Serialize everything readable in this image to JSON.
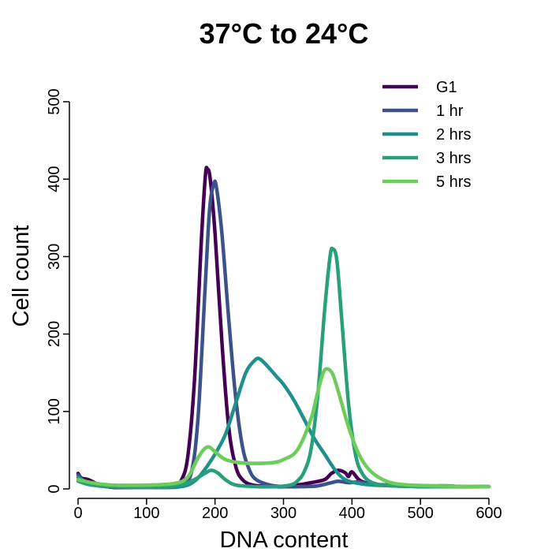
{
  "chart_data": {
    "type": "line",
    "title": "37°C to 24°C",
    "xlabel": "DNA content",
    "ylabel": "Cell count",
    "xlim": [
      0,
      600
    ],
    "ylim": [
      0,
      500
    ],
    "x_ticks": [
      "0",
      "100",
      "200",
      "300",
      "400",
      "500",
      "600"
    ],
    "y_ticks": [
      "0",
      "100",
      "200",
      "300",
      "400",
      "500"
    ],
    "legend_position": "top-right",
    "grid": false,
    "series": [
      {
        "name": "G1",
        "color": "#440154",
        "points": [
          [
            0,
            20
          ],
          [
            5,
            14
          ],
          [
            15,
            12
          ],
          [
            30,
            6
          ],
          [
            50,
            2
          ],
          [
            80,
            2
          ],
          [
            100,
            2
          ],
          [
            120,
            2
          ],
          [
            140,
            3
          ],
          [
            150,
            10
          ],
          [
            160,
            40
          ],
          [
            170,
            140
          ],
          [
            180,
            320
          ],
          [
            186,
            405
          ],
          [
            189,
            413
          ],
          [
            193,
            400
          ],
          [
            200,
            330
          ],
          [
            210,
            190
          ],
          [
            220,
            80
          ],
          [
            230,
            30
          ],
          [
            240,
            12
          ],
          [
            255,
            5
          ],
          [
            280,
            3
          ],
          [
            300,
            3
          ],
          [
            320,
            5
          ],
          [
            340,
            8
          ],
          [
            360,
            12
          ],
          [
            370,
            20
          ],
          [
            380,
            24
          ],
          [
            390,
            21
          ],
          [
            395,
            16
          ],
          [
            400,
            22
          ],
          [
            410,
            12
          ],
          [
            420,
            8
          ],
          [
            440,
            5
          ],
          [
            460,
            4
          ],
          [
            500,
            3
          ],
          [
            550,
            3
          ],
          [
            600,
            3
          ]
        ]
      },
      {
        "name": "1 hr",
        "color": "#3b528b",
        "points": [
          [
            0,
            18
          ],
          [
            10,
            8
          ],
          [
            30,
            4
          ],
          [
            60,
            2
          ],
          [
            100,
            2
          ],
          [
            130,
            2
          ],
          [
            150,
            4
          ],
          [
            165,
            20
          ],
          [
            175,
            90
          ],
          [
            185,
            250
          ],
          [
            192,
            360
          ],
          [
            198,
            393
          ],
          [
            202,
            390
          ],
          [
            210,
            330
          ],
          [
            220,
            220
          ],
          [
            230,
            120
          ],
          [
            240,
            55
          ],
          [
            250,
            25
          ],
          [
            260,
            12
          ],
          [
            280,
            5
          ],
          [
            300,
            3
          ],
          [
            330,
            3
          ],
          [
            350,
            4
          ],
          [
            370,
            8
          ],
          [
            380,
            10
          ],
          [
            395,
            8
          ],
          [
            410,
            9
          ],
          [
            430,
            6
          ],
          [
            460,
            5
          ],
          [
            500,
            4
          ],
          [
            540,
            4
          ],
          [
            560,
            3
          ],
          [
            600,
            3
          ]
        ]
      },
      {
        "name": "2 hrs",
        "color": "#21908c",
        "points": [
          [
            0,
            15
          ],
          [
            20,
            6
          ],
          [
            50,
            3
          ],
          [
            100,
            2
          ],
          [
            150,
            3
          ],
          [
            170,
            10
          ],
          [
            185,
            25
          ],
          [
            200,
            45
          ],
          [
            215,
            70
          ],
          [
            230,
            110
          ],
          [
            245,
            150
          ],
          [
            258,
            166
          ],
          [
            265,
            168
          ],
          [
            275,
            160
          ],
          [
            290,
            145
          ],
          [
            300,
            135
          ],
          [
            315,
            115
          ],
          [
            330,
            90
          ],
          [
            345,
            65
          ],
          [
            360,
            45
          ],
          [
            375,
            25
          ],
          [
            390,
            12
          ],
          [
            410,
            7
          ],
          [
            430,
            5
          ],
          [
            470,
            4
          ],
          [
            520,
            3
          ],
          [
            600,
            3
          ]
        ]
      },
      {
        "name": "3 hrs",
        "color": "#27a07b",
        "points": [
          [
            0,
            10
          ],
          [
            20,
            5
          ],
          [
            60,
            3
          ],
          [
            120,
            3
          ],
          [
            150,
            5
          ],
          [
            170,
            12
          ],
          [
            185,
            20
          ],
          [
            195,
            24
          ],
          [
            205,
            20
          ],
          [
            215,
            12
          ],
          [
            230,
            5
          ],
          [
            260,
            3
          ],
          [
            290,
            3
          ],
          [
            310,
            5
          ],
          [
            320,
            10
          ],
          [
            330,
            22
          ],
          [
            340,
            50
          ],
          [
            350,
            120
          ],
          [
            360,
            230
          ],
          [
            368,
            300
          ],
          [
            372,
            310
          ],
          [
            378,
            295
          ],
          [
            385,
            220
          ],
          [
            395,
            110
          ],
          [
            405,
            45
          ],
          [
            415,
            20
          ],
          [
            430,
            8
          ],
          [
            460,
            4
          ],
          [
            520,
            3
          ],
          [
            600,
            3
          ]
        ]
      },
      {
        "name": "5 hrs",
        "color": "#6ccd5a",
        "points": [
          [
            0,
            12
          ],
          [
            20,
            8
          ],
          [
            50,
            5
          ],
          [
            100,
            5
          ],
          [
            140,
            7
          ],
          [
            160,
            15
          ],
          [
            175,
            40
          ],
          [
            185,
            52
          ],
          [
            192,
            54
          ],
          [
            200,
            48
          ],
          [
            215,
            38
          ],
          [
            235,
            34
          ],
          [
            260,
            33
          ],
          [
            285,
            34
          ],
          [
            300,
            38
          ],
          [
            320,
            50
          ],
          [
            340,
            90
          ],
          [
            350,
            125
          ],
          [
            358,
            150
          ],
          [
            364,
            155
          ],
          [
            372,
            148
          ],
          [
            382,
            120
          ],
          [
            395,
            80
          ],
          [
            410,
            45
          ],
          [
            425,
            25
          ],
          [
            445,
            12
          ],
          [
            470,
            6
          ],
          [
            520,
            4
          ],
          [
            600,
            3
          ]
        ]
      }
    ]
  }
}
